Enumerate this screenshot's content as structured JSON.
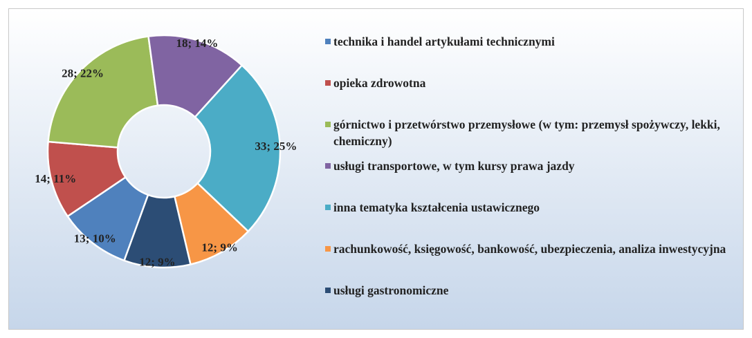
{
  "chart_data": {
    "type": "donut",
    "categories": [
      "technika i handel artykułami technicznymi",
      "opieka zdrowotna",
      "górnictwo i przetwórstwo przemysłowe (w tym: przemysł spożywczy, lekki, chemiczny)",
      "usługi transportowe, w tym kursy prawa jazdy",
      "inna tematyka kształcenia ustawicznego",
      "rachunkowość, księgowość, bankowość, ubezpieczenia, analiza inwestycyjna",
      "usługi gastronomiczne"
    ],
    "values": [
      13,
      14,
      28,
      18,
      33,
      12,
      12
    ],
    "value_labels": [
      "13; 10%",
      "14; 11%",
      "28; 22%",
      "18; 14%",
      "33; 25%",
      "12; 9%",
      "12; 9%"
    ],
    "colors": [
      "#4f81bd",
      "#c0504d",
      "#9bbb59",
      "#8064a2",
      "#4bacc6",
      "#f79646",
      "#2c4d75"
    ],
    "first_slice_angle": 200,
    "legend": "right"
  }
}
